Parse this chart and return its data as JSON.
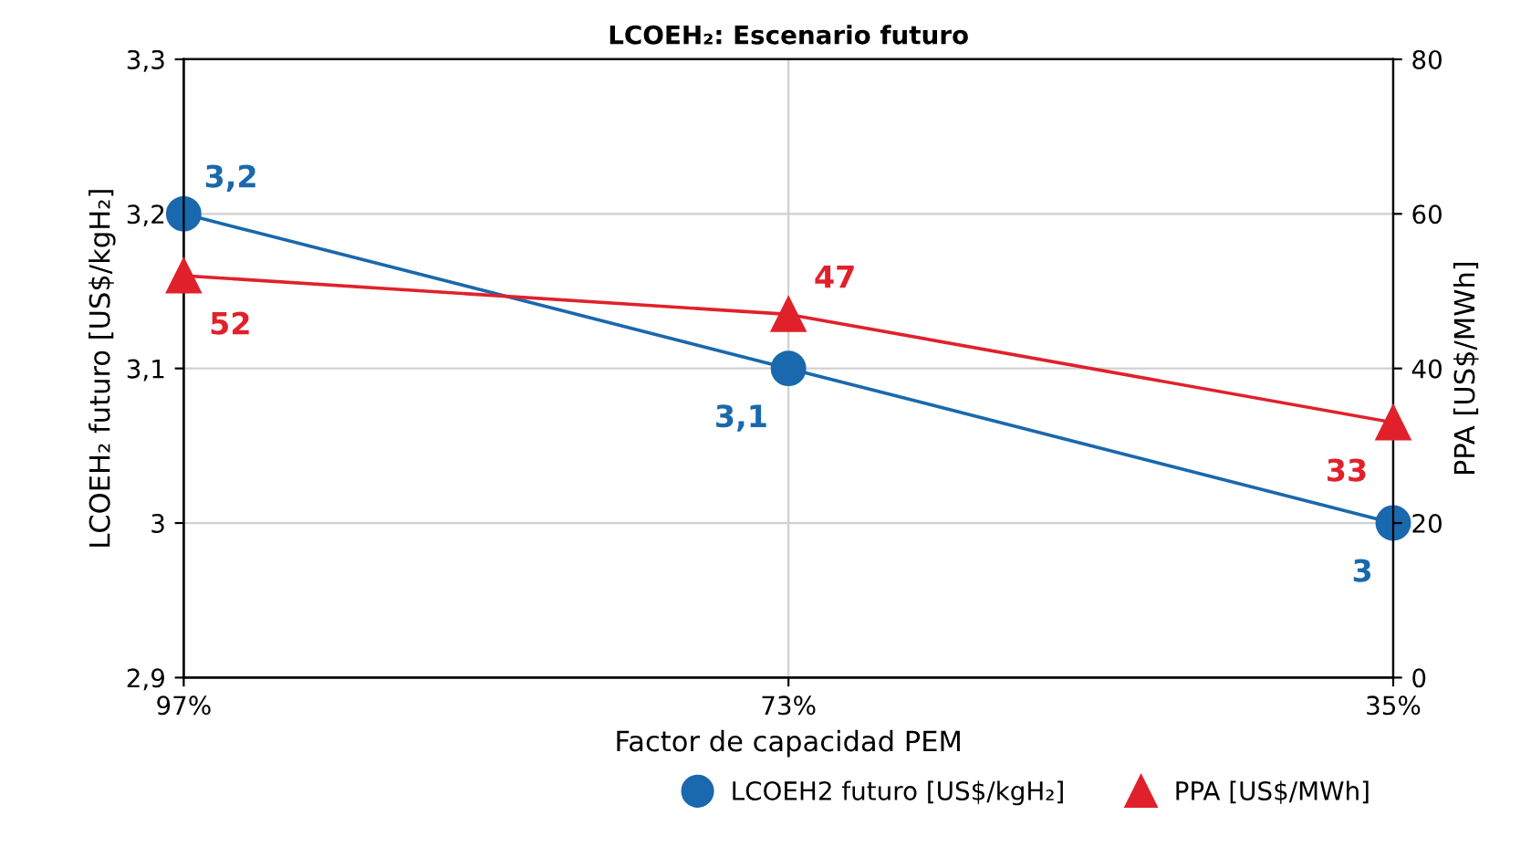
{
  "chart_data": {
    "type": "line",
    "title": "LCOEH₂: Escenario futuro",
    "xlabel": "Factor de capacidad PEM",
    "ylabel": "LCOEH₂ futuro [US$/kgH₂]",
    "y2label": "PPA [US$/MWh]",
    "categories": [
      "97%",
      "73%",
      "35%"
    ],
    "series": [
      {
        "name": "LCOEH2 futuro [US$/kgH₂]",
        "color": "#1a68ad",
        "marker": "circle",
        "values": [
          3.2,
          3.1,
          3.0
        ],
        "value_labels": [
          "3,2",
          "3,1",
          "3"
        ]
      },
      {
        "name": "PPA [US$/MWh]",
        "color": "#e0212b",
        "marker": "triangle",
        "axis": "y2",
        "values": [
          52,
          47,
          33
        ],
        "value_labels": [
          "52",
          "47",
          "33"
        ]
      }
    ],
    "ylim": [
      2.9,
      3.3
    ],
    "yticks": [
      {
        "value": 2.9,
        "label": "2,9"
      },
      3,
      {
        "value": 3.1,
        "label": "3,1"
      },
      {
        "value": 3.2,
        "label": "3,2"
      },
      {
        "value": 3.3,
        "label": "3,3"
      }
    ],
    "y2lim": [
      0,
      80
    ],
    "y2ticks": [
      0,
      20,
      40,
      60,
      80
    ],
    "grid": true,
    "legend": "bottom right"
  }
}
